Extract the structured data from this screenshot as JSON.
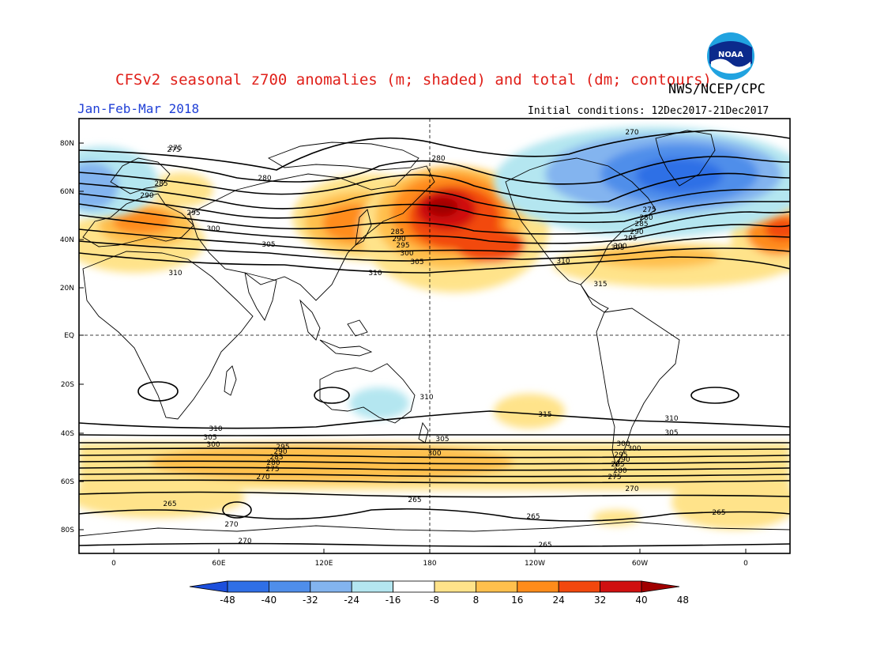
{
  "header": {
    "title": "CFSv2 seasonal z700 anomalies (m; shaded) and total (dm; contours)",
    "agency": "NWS/NCEP/CPC",
    "period": "Jan-Feb-Mar 2018",
    "initial_conditions": "Initial conditions: 12Dec2017-21Dec2017",
    "logo_text": "NOAA",
    "logo_icon": "noaa-logo-icon"
  },
  "map": {
    "lat_labels": [
      "80N",
      "60N",
      "40N",
      "20N",
      "EQ",
      "20S",
      "40S",
      "60S",
      "80S"
    ],
    "lon_labels": [
      "0",
      "60E",
      "120E",
      "180",
      "120W",
      "60W",
      "0"
    ],
    "contour_labels": [
      {
        "text": "275"
      },
      {
        "text": "275"
      },
      {
        "text": "270"
      },
      {
        "text": "280"
      },
      {
        "text": "280"
      },
      {
        "text": "285"
      },
      {
        "text": "290"
      },
      {
        "text": "295"
      },
      {
        "text": "300"
      },
      {
        "text": "305"
      },
      {
        "text": "310"
      },
      {
        "text": "310"
      },
      {
        "text": "285"
      },
      {
        "text": "290"
      },
      {
        "text": "295"
      },
      {
        "text": "300"
      },
      {
        "text": "305"
      },
      {
        "text": "310"
      },
      {
        "text": "275"
      },
      {
        "text": "280"
      },
      {
        "text": "285"
      },
      {
        "text": "290"
      },
      {
        "text": "295"
      },
      {
        "text": "300"
      },
      {
        "text": "305"
      },
      {
        "text": "315"
      },
      {
        "text": "310"
      },
      {
        "text": "315"
      },
      {
        "text": "310"
      },
      {
        "text": "310"
      },
      {
        "text": "305"
      },
      {
        "text": "300"
      },
      {
        "text": "305"
      },
      {
        "text": "300"
      },
      {
        "text": "295"
      },
      {
        "text": "290"
      },
      {
        "text": "285"
      },
      {
        "text": "280"
      },
      {
        "text": "275"
      },
      {
        "text": "270"
      },
      {
        "text": "305"
      },
      {
        "text": "300"
      },
      {
        "text": "300"
      },
      {
        "text": "295"
      },
      {
        "text": "290"
      },
      {
        "text": "285"
      },
      {
        "text": "280"
      },
      {
        "text": "275"
      },
      {
        "text": "270"
      },
      {
        "text": "265"
      },
      {
        "text": "265"
      },
      {
        "text": "265"
      },
      {
        "text": "265"
      },
      {
        "text": "270"
      },
      {
        "text": "270"
      },
      {
        "text": "265"
      }
    ],
    "anomaly_features": [
      {
        "name": "north-pacific-high",
        "sign": "positive",
        "peak": 48
      },
      {
        "name": "europe-high",
        "sign": "positive",
        "peak": 32
      },
      {
        "name": "east-asia-high",
        "sign": "positive",
        "peak": 32
      },
      {
        "name": "canada-low",
        "sign": "negative",
        "peak": -40
      },
      {
        "name": "australia-low",
        "sign": "negative",
        "peak": -16
      },
      {
        "name": "southern-ocean-high",
        "sign": "positive",
        "peak": 24
      }
    ]
  },
  "colorbar": {
    "labels": [
      "-48",
      "-40",
      "-32",
      "-24",
      "-16",
      "-8",
      "8",
      "16",
      "24",
      "32",
      "40",
      "48"
    ],
    "colors": [
      "#1c4fdc",
      "#2f6fe6",
      "#4f8eea",
      "#83b4ef",
      "#b4e6f0",
      "#ffffff",
      "#ffe38a",
      "#ffc04d",
      "#ff8c1a",
      "#f2480d",
      "#d01010",
      "#a00000"
    ]
  }
}
